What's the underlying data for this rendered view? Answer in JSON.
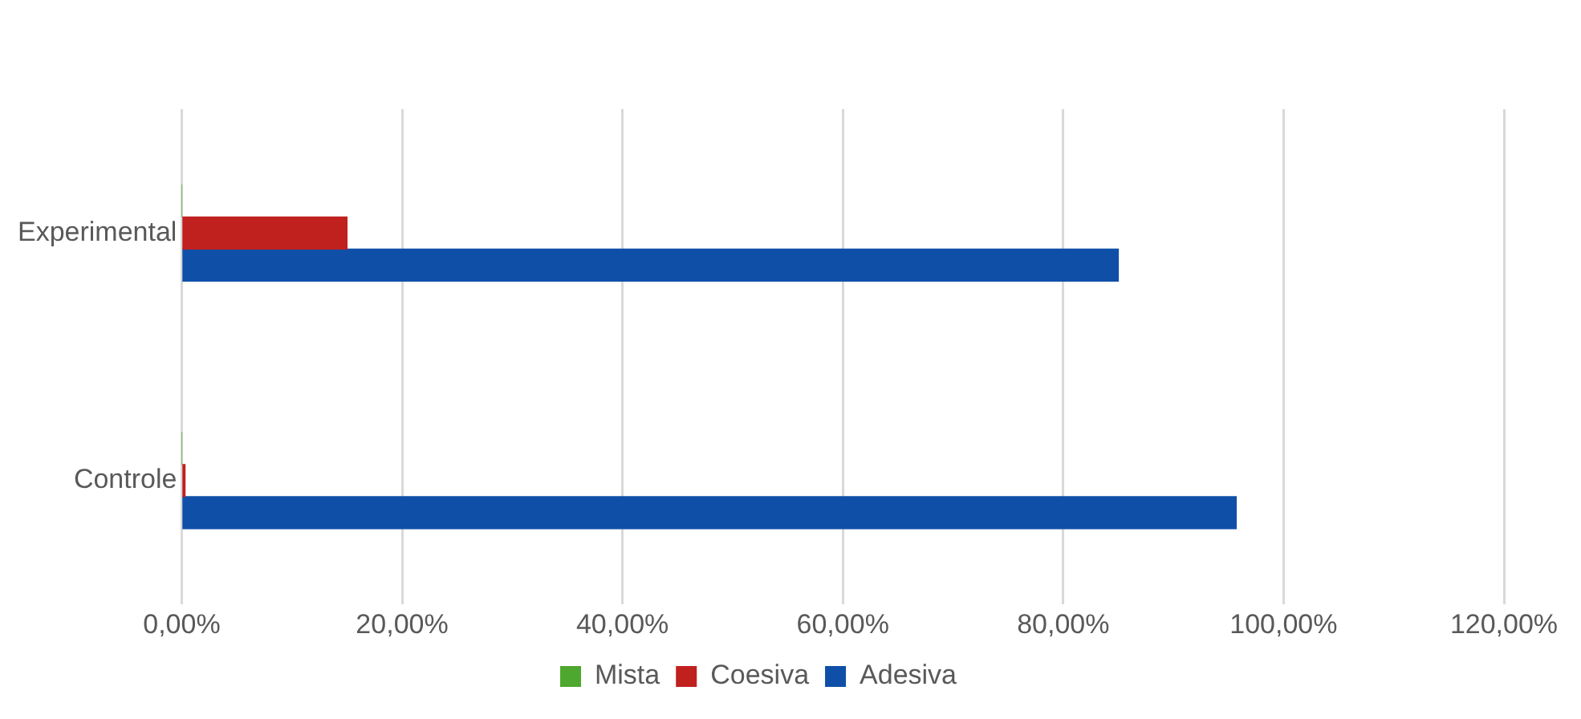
{
  "chart_data": {
    "type": "bar",
    "orientation": "horizontal",
    "categories": [
      "Experimental",
      "Controle"
    ],
    "series": [
      {
        "name": "Mista",
        "color": "#4ea72e",
        "values": [
          0,
          0
        ]
      },
      {
        "name": "Coesiva",
        "color": "#c0201e",
        "values": [
          15,
          0.3
        ]
      },
      {
        "name": "Adesiva",
        "color": "#0f4fa8",
        "values": [
          85,
          95.7
        ]
      }
    ],
    "xlim": [
      0,
      120
    ],
    "xticks": [
      {
        "value": 0,
        "label": "0,00%"
      },
      {
        "value": 20,
        "label": "20,00%"
      },
      {
        "value": 40,
        "label": "40,00%"
      },
      {
        "value": 60,
        "label": "60,00%"
      },
      {
        "value": 80,
        "label": "80,00%"
      },
      {
        "value": 100,
        "label": "100,00%"
      },
      {
        "value": 120,
        "label": "120,00%"
      }
    ],
    "grid": "x",
    "legend": "bottom"
  }
}
